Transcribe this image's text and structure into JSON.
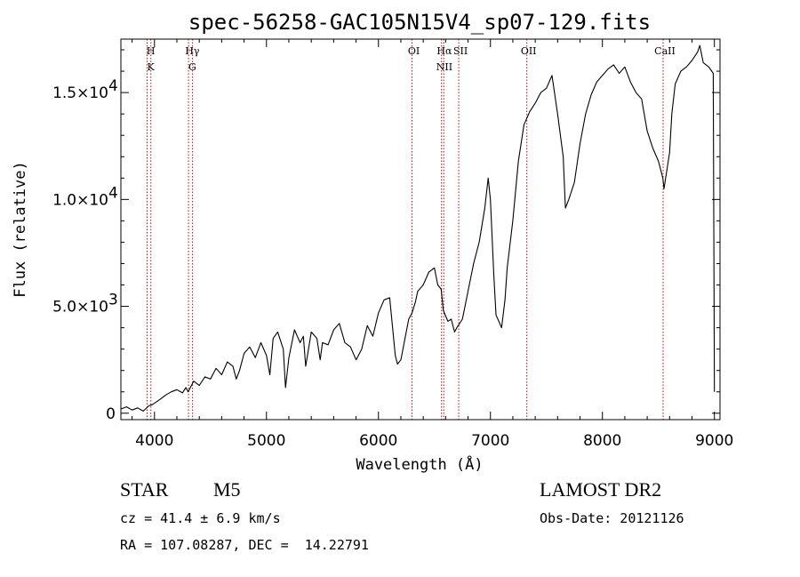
{
  "chart_data": {
    "type": "line",
    "title": "spec-56258-GAC105N15V4_sp07-129.fits",
    "xlabel": "Wavelength (Å)",
    "ylabel": "Flux (relative)",
    "xlim": [
      3700,
      9050
    ],
    "ylim": [
      -300,
      17500
    ],
    "x_ticks": [
      4000,
      5000,
      6000,
      7000,
      8000,
      9000
    ],
    "y_ticks": [
      {
        "value": 0,
        "base": "0",
        "exp": ""
      },
      {
        "value": 5000,
        "base": "5.0×10",
        "exp": "3"
      },
      {
        "value": 10000,
        "base": "1.0×10",
        "exp": "4"
      },
      {
        "value": 15000,
        "base": "1.5×10",
        "exp": "4"
      }
    ],
    "grid": false,
    "line_color": "#000000",
    "marker_color": "#cc0000",
    "series": [
      {
        "x": [
          3700,
          3750,
          3800,
          3850,
          3900,
          3950,
          3980,
          4050,
          4100,
          4150,
          4200,
          4250,
          4280,
          4300,
          4350,
          4400,
          4450,
          4500,
          4550,
          4600,
          4650,
          4700,
          4730,
          4760,
          4800,
          4850,
          4900,
          4950,
          5000,
          5030,
          5060,
          5100,
          5150,
          5170,
          5200,
          5250,
          5300,
          5330,
          5350,
          5400,
          5450,
          5480,
          5500,
          5550,
          5600,
          5650,
          5700,
          5750,
          5800,
          5850,
          5900,
          5950,
          6000,
          6050,
          6100,
          6150,
          6170,
          6200,
          6230,
          6270,
          6300,
          6330,
          6350,
          6400,
          6450,
          6500,
          6530,
          6560,
          6580,
          6620,
          6650,
          6680,
          6700,
          6750,
          6800,
          6850,
          6900,
          6950,
          6980,
          7000,
          7030,
          7050,
          7100,
          7130,
          7150,
          7200,
          7250,
          7300,
          7350,
          7400,
          7450,
          7500,
          7550,
          7600,
          7650,
          7670,
          7700,
          7750,
          7800,
          7850,
          7900,
          7950,
          8000,
          8050,
          8100,
          8150,
          8200,
          8250,
          8300,
          8350,
          8400,
          8450,
          8500,
          8540,
          8550,
          8600,
          8620,
          8650,
          8700,
          8750,
          8800,
          8850,
          8870,
          8900,
          8950,
          8990,
          9000
        ],
        "y": [
          200,
          300,
          150,
          250,
          100,
          350,
          400,
          650,
          850,
          1000,
          1100,
          950,
          1200,
          1000,
          1500,
          1300,
          1700,
          1600,
          2100,
          1800,
          2400,
          2200,
          1600,
          2000,
          2800,
          3100,
          2600,
          3300,
          2700,
          1800,
          3500,
          3800,
          3000,
          1200,
          2600,
          3900,
          3300,
          3600,
          2200,
          3800,
          3500,
          2500,
          3300,
          3200,
          3900,
          4200,
          3300,
          3100,
          2500,
          3000,
          4100,
          3600,
          4700,
          5300,
          5400,
          2700,
          2300,
          2500,
          3300,
          4400,
          4700,
          5200,
          5700,
          6000,
          6600,
          6800,
          6000,
          5800,
          4800,
          4300,
          4400,
          3800,
          4000,
          4400,
          5700,
          7000,
          8000,
          9600,
          11000,
          10000,
          6500,
          4600,
          4000,
          5300,
          6800,
          9000,
          11800,
          13500,
          14100,
          14500,
          15000,
          15200,
          15800,
          14000,
          12000,
          9600,
          10000,
          10800,
          12600,
          14000,
          14900,
          15500,
          15800,
          16100,
          16300,
          15900,
          16200,
          15500,
          15000,
          14700,
          13200,
          12400,
          11800,
          11000,
          10500,
          12200,
          14000,
          15400,
          16000,
          16200,
          16500,
          16900,
          17200,
          16400,
          16200,
          15900,
          1000
        ]
      }
    ],
    "line_markers": [
      {
        "labels": [
          "H",
          "K"
        ],
        "x": [
          3968,
          3934
        ]
      },
      {
        "labels": [
          "Hγ",
          "G"
        ],
        "x": [
          4340,
          4304
        ]
      },
      {
        "labels": [
          "OI"
        ],
        "x": [
          6300
        ]
      },
      {
        "labels": [
          "Hα",
          "NII"
        ],
        "x": [
          6563,
          6583
        ]
      },
      {
        "labels": [
          "SII"
        ],
        "x": [
          6717
        ]
      },
      {
        "labels": [
          "OII"
        ],
        "x": [
          7325
        ]
      },
      {
        "labels": [
          "CaII"
        ],
        "x": [
          8542
        ]
      }
    ]
  },
  "info": {
    "class": "STAR",
    "subclass": "M5",
    "cz": "cz = 41.4 ± 6.9 km/s",
    "coords": "RA = 107.08287, DEC =  14.22791",
    "survey": "LAMOST DR2",
    "obs_date": "Obs-Date: 20121126"
  }
}
